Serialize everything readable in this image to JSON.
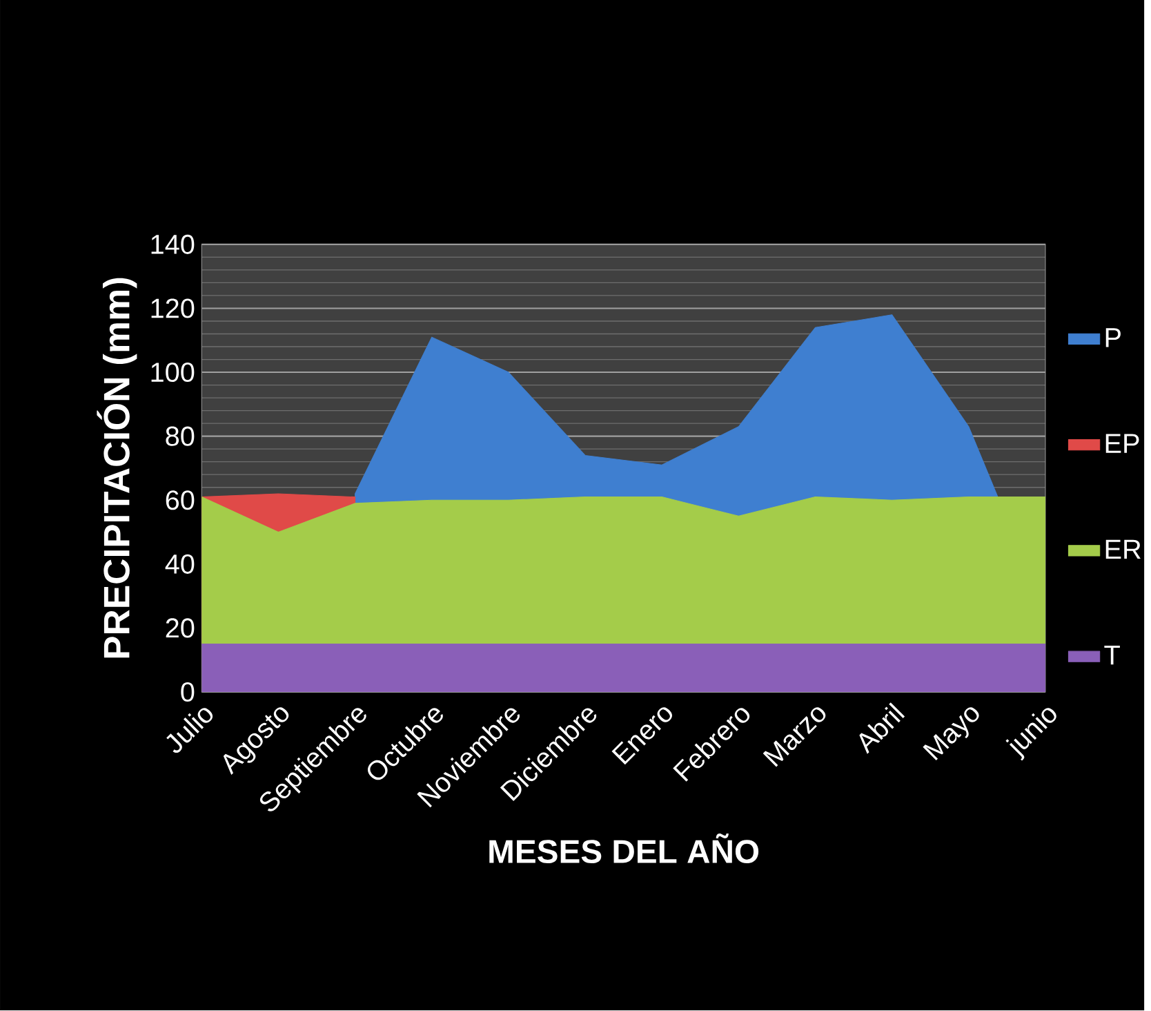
{
  "chart_data": {
    "type": "area",
    "xlabel": "MESES DEL AÑO",
    "ylabel": "PRECIPITACIÓN (mm)",
    "categories": [
      "Julio",
      "Agosto",
      "Septiembre",
      "Octubre",
      "Noviembre",
      "Diciembre",
      "Enero",
      "Febrero",
      "Marzo",
      "Abril",
      "Mayo",
      "junio"
    ],
    "series": [
      {
        "name": "P",
        "color": "#3f7fd0",
        "values": [
          null,
          null,
          62,
          111,
          100,
          74,
          71,
          83,
          114,
          118,
          83,
          25
        ]
      },
      {
        "name": "EP",
        "color": "#e04a48",
        "values": [
          61,
          62,
          61,
          null,
          null,
          null,
          null,
          null,
          null,
          null,
          null,
          null
        ]
      },
      {
        "name": "ER",
        "color": "#a4cc4a",
        "values": [
          61,
          50,
          59,
          60,
          60,
          61,
          61,
          55,
          61,
          60,
          61,
          61
        ]
      },
      {
        "name": "T",
        "color": "#8a5fb8",
        "values": [
          15,
          15,
          15,
          15,
          15,
          15,
          15,
          15,
          15,
          15,
          15,
          15
        ]
      }
    ],
    "ylim": [
      0,
      140
    ],
    "yticks": [
      0,
      20,
      40,
      60,
      80,
      100,
      120,
      140
    ],
    "grid": "y",
    "legend": "right"
  }
}
